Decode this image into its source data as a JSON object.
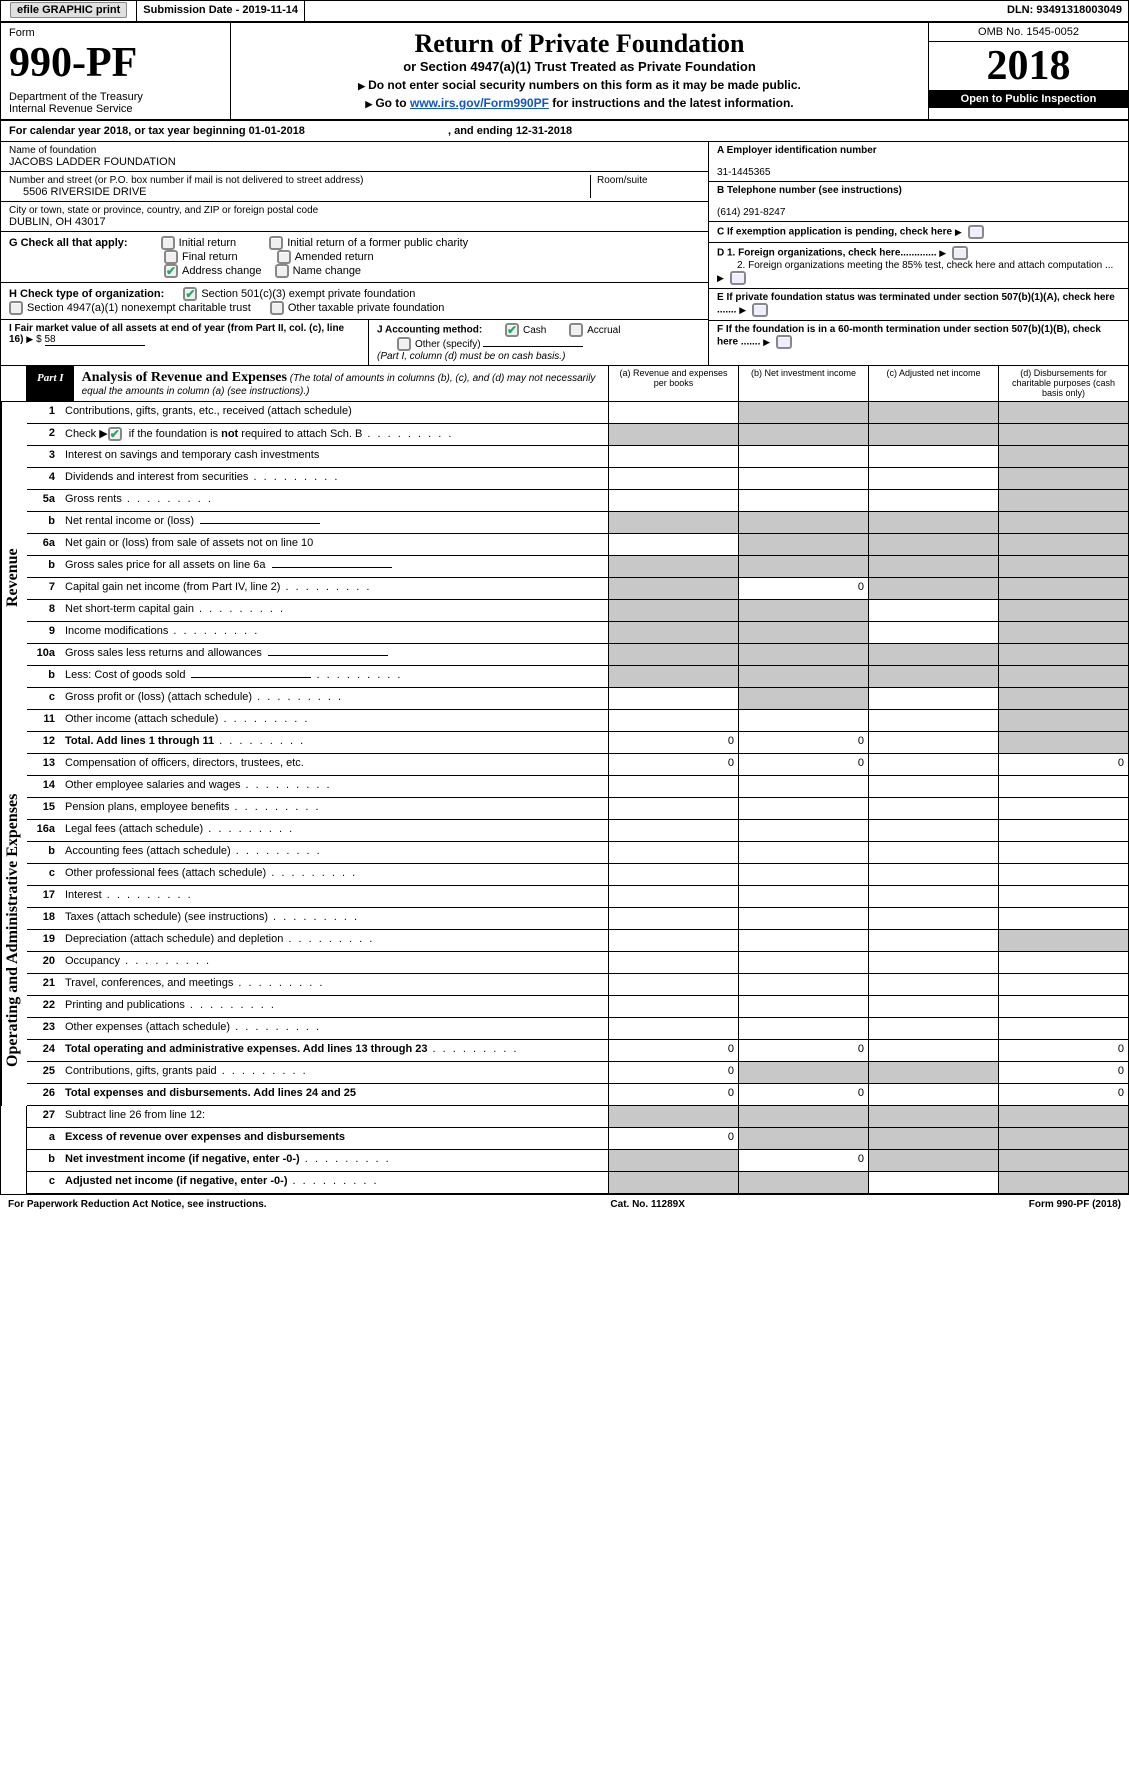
{
  "topbar": {
    "efile": "efile GRAPHIC print",
    "subdate_label": "Submission Date - ",
    "subdate": "2019-11-14",
    "dln_label": "DLN: ",
    "dln": "93491318003049"
  },
  "header": {
    "form_word": "Form",
    "form_number": "990-PF",
    "dept": "Department of the Treasury\nInternal Revenue Service",
    "title": "Return of Private Foundation",
    "subtitle": "or Section 4947(a)(1) Trust Treated as Private Foundation",
    "note1": "Do not enter social security numbers on this form as it may be made public.",
    "note2_pre": "Go to ",
    "note2_link": "www.irs.gov/Form990PF",
    "note2_post": " for instructions and the latest information.",
    "omb": "OMB No. 1545-0052",
    "year": "2018",
    "otp": "Open to Public Inspection"
  },
  "cal": {
    "text": "For calendar year 2018, or tax year beginning 01-01-2018",
    "end": ", and ending 12-31-2018"
  },
  "id": {
    "name_label": "Name of foundation",
    "name": "JACOBS LADDER FOUNDATION",
    "addr_label": "Number and street (or P.O. box number if mail is not delivered to street address)",
    "room_label": "Room/suite",
    "addr": "5506 RIVERSIDE DRIVE",
    "city_label": "City or town, state or province, country, and ZIP or foreign postal code",
    "city": "DUBLIN, OH  43017",
    "ein_label": "A Employer identification number",
    "ein": "31-1445365",
    "tel_label": "B Telephone number (see instructions)",
    "tel": "(614) 291-8247",
    "c_label": "C If exemption application is pending, check here",
    "d1": "D 1. Foreign organizations, check here.............",
    "d2": "2. Foreign organizations meeting the 85% test, check here and attach computation ...",
    "e": "E If private foundation status was terminated under section 507(b)(1)(A), check here .......",
    "f": "F If the foundation is in a 60-month termination under section 507(b)(1)(B), check here ......."
  },
  "g": {
    "label": "G Check all that apply:",
    "initial": "Initial return",
    "initial_former": "Initial return of a former public charity",
    "final": "Final return",
    "amended": "Amended return",
    "address": "Address change",
    "name": "Name change"
  },
  "h": {
    "label": "H Check type of organization:",
    "sec501": "Section 501(c)(3) exempt private foundation",
    "sec4947": "Section 4947(a)(1) nonexempt charitable trust",
    "other_tax": "Other taxable private foundation"
  },
  "i": {
    "label": "I Fair market value of all assets at end of year (from Part II, col. (c), line 16)",
    "val_prefix": "$",
    "val": "58"
  },
  "j": {
    "label": "J Accounting method:",
    "cash": "Cash",
    "accrual": "Accrual",
    "other": "Other (specify)",
    "note": "(Part I, column (d) must be on cash basis.)"
  },
  "part1": {
    "tab": "Part I",
    "title": "Analysis of Revenue and Expenses",
    "note": " (The total of amounts in columns (b), (c), and (d) may not necessarily equal the amounts in column (a) (see instructions).)",
    "ca": "(a)   Revenue and expenses per books",
    "cb": "(b)   Net investment income",
    "cc": "(c)   Adjusted net income",
    "cd": "(d)   Disbursements for charitable purposes (cash basis only)"
  },
  "sidelabels": {
    "rev": "Revenue",
    "exp": "Operating and Administrative Expenses"
  },
  "rows": [
    {
      "n": "1",
      "l": "Contributions, gifts, grants, etc., received (attach schedule)",
      "a": "",
      "b": "s",
      "c": "s",
      "d": "s"
    },
    {
      "n": "2",
      "l": "Check ▶",
      "l2": " if the foundation is not required to attach Sch. B",
      "chk": true,
      "dots": true,
      "a": "s",
      "b": "s",
      "c": "s",
      "d": "s"
    },
    {
      "n": "3",
      "l": "Interest on savings and temporary cash investments",
      "a": "",
      "b": "",
      "c": "",
      "d": "s"
    },
    {
      "n": "4",
      "l": "Dividends and interest from securities",
      "dots": true,
      "a": "",
      "b": "",
      "c": "",
      "d": "s"
    },
    {
      "n": "5a",
      "l": "Gross rents",
      "dots": true,
      "a": "",
      "b": "",
      "c": "",
      "d": "s"
    },
    {
      "n": "b",
      "l": "Net rental income or (loss)",
      "ul": true,
      "a": "s",
      "b": "s",
      "c": "s",
      "d": "s"
    },
    {
      "n": "6a",
      "l": "Net gain or (loss) from sale of assets not on line 10",
      "a": "",
      "b": "s",
      "c": "s",
      "d": "s"
    },
    {
      "n": "b",
      "l": "Gross sales price for all assets on line 6a",
      "ul": true,
      "a": "s",
      "b": "s",
      "c": "s",
      "d": "s"
    },
    {
      "n": "7",
      "l": "Capital gain net income (from Part IV, line 2)",
      "dots": true,
      "a": "s",
      "b": "0",
      "c": "s",
      "d": "s"
    },
    {
      "n": "8",
      "l": "Net short-term capital gain",
      "dots": true,
      "a": "s",
      "b": "s",
      "c": "",
      "d": "s"
    },
    {
      "n": "9",
      "l": "Income modifications",
      "dots": true,
      "a": "s",
      "b": "s",
      "c": "",
      "d": "s"
    },
    {
      "n": "10a",
      "l": "Gross sales less returns and allowances",
      "ul": true,
      "a": "s",
      "b": "s",
      "c": "s",
      "d": "s"
    },
    {
      "n": "b",
      "l": "Less: Cost of goods sold",
      "dots": true,
      "ul": true,
      "a": "s",
      "b": "s",
      "c": "s",
      "d": "s"
    },
    {
      "n": "c",
      "l": "Gross profit or (loss) (attach schedule)",
      "dots": true,
      "a": "",
      "b": "s",
      "c": "",
      "d": "s"
    },
    {
      "n": "11",
      "l": "Other income (attach schedule)",
      "dots": true,
      "a": "",
      "b": "",
      "c": "",
      "d": "s"
    },
    {
      "n": "12",
      "l": "Total. Add lines 1 through 11",
      "b2": true,
      "dots": true,
      "a": "0",
      "b": "0",
      "c": "",
      "d": "s"
    },
    {
      "n": "13",
      "l": "Compensation of officers, directors, trustees, etc.",
      "a": "0",
      "b": "0",
      "c": "",
      "d": "0",
      "sec": "exp"
    },
    {
      "n": "14",
      "l": "Other employee salaries and wages",
      "dots": true
    },
    {
      "n": "15",
      "l": "Pension plans, employee benefits",
      "dots": true
    },
    {
      "n": "16a",
      "l": "Legal fees (attach schedule)",
      "dots": true
    },
    {
      "n": "b",
      "l": "Accounting fees (attach schedule)",
      "dots": true
    },
    {
      "n": "c",
      "l": "Other professional fees (attach schedule)",
      "dots": true
    },
    {
      "n": "17",
      "l": "Interest",
      "dots": true
    },
    {
      "n": "18",
      "l": "Taxes (attach schedule) (see instructions)",
      "dots": true
    },
    {
      "n": "19",
      "l": "Depreciation (attach schedule) and depletion",
      "dots": true,
      "d": "s"
    },
    {
      "n": "20",
      "l": "Occupancy",
      "dots": true
    },
    {
      "n": "21",
      "l": "Travel, conferences, and meetings",
      "dots": true
    },
    {
      "n": "22",
      "l": "Printing and publications",
      "dots": true
    },
    {
      "n": "23",
      "l": "Other expenses (attach schedule)",
      "dots": true
    },
    {
      "n": "24",
      "l": "Total operating and administrative expenses. Add lines 13 through 23",
      "b2": true,
      "dots": true,
      "a": "0",
      "b": "0",
      "c": "",
      "d": "0"
    },
    {
      "n": "25",
      "l": "Contributions, gifts, grants paid",
      "dots": true,
      "a": "0",
      "b": "s",
      "c": "s",
      "d": "0"
    },
    {
      "n": "26",
      "l": "Total expenses and disbursements. Add lines 24 and 25",
      "b2": true,
      "a": "0",
      "b": "0",
      "c": "",
      "d": "0"
    },
    {
      "n": "27",
      "l": "Subtract line 26 from line 12:",
      "a": "s",
      "b": "s",
      "c": "s",
      "d": "s",
      "sec": "none"
    },
    {
      "n": "a",
      "l": "Excess of revenue over expenses and disbursements",
      "b2": true,
      "a": "0",
      "b": "s",
      "c": "s",
      "d": "s"
    },
    {
      "n": "b",
      "l": "Net investment income (if negative, enter -0-)",
      "b2": true,
      "dots": true,
      "a": "s",
      "b": "0",
      "c": "s",
      "d": "s"
    },
    {
      "n": "c",
      "l": "Adjusted net income (if negative, enter -0-)",
      "b2": true,
      "dots": true,
      "a": "s",
      "b": "s",
      "c": "",
      "d": "s"
    }
  ],
  "footer": {
    "left": "For Paperwork Reduction Act Notice, see instructions.",
    "mid": "Cat. No. 11289X",
    "right": "Form 990-PF (2018)"
  }
}
